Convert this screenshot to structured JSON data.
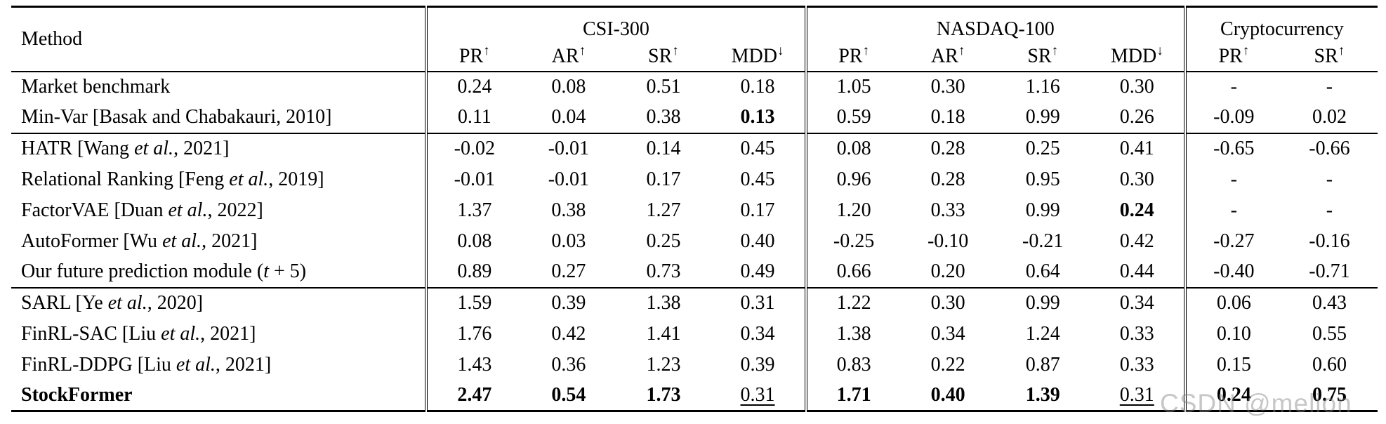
{
  "watermark": {
    "text": "CSDN @melion",
    "color": "#a8a8a8"
  },
  "table": {
    "method_header": "Method",
    "groups": [
      {
        "label": "CSI-300",
        "columns": [
          {
            "name": "PR",
            "dir": "↑"
          },
          {
            "name": "AR",
            "dir": "↑"
          },
          {
            "name": "SR",
            "dir": "↑"
          },
          {
            "name": "MDD",
            "dir": "↓"
          }
        ]
      },
      {
        "label": "NASDAQ-100",
        "columns": [
          {
            "name": "PR",
            "dir": "↑"
          },
          {
            "name": "AR",
            "dir": "↑"
          },
          {
            "name": "SR",
            "dir": "↑"
          },
          {
            "name": "MDD",
            "dir": "↓"
          }
        ]
      },
      {
        "label": "Cryptocurrency",
        "columns": [
          {
            "name": "PR",
            "dir": "↑"
          },
          {
            "name": "SR",
            "dir": "↑"
          }
        ]
      }
    ],
    "row_groups": [
      {
        "name": "benchmarks",
        "rows": [
          {
            "method": [
              {
                "t": "Market benchmark"
              }
            ],
            "cells": [
              "0.24",
              "0.08",
              "0.51",
              "0.18",
              "1.05",
              "0.30",
              "1.16",
              "0.30",
              "-",
              "-"
            ]
          },
          {
            "method": [
              {
                "t": "Min-Var [Basak and Chabakauri, 2010]"
              }
            ],
            "cells": [
              "0.11",
              "0.04",
              "0.38",
              {
                "v": "0.13",
                "b": true
              },
              "0.59",
              "0.18",
              "0.99",
              "0.26",
              "-0.09",
              "0.02"
            ]
          }
        ]
      },
      {
        "name": "prediction-models",
        "rows": [
          {
            "method": [
              {
                "t": "HATR [Wang "
              },
              {
                "t": "et al.",
                "i": true
              },
              {
                "t": ", 2021]"
              }
            ],
            "cells": [
              "-0.02",
              "-0.01",
              "0.14",
              "0.45",
              "0.08",
              "0.28",
              "0.25",
              "0.41",
              "-0.65",
              "-0.66"
            ]
          },
          {
            "method": [
              {
                "t": "Relational Ranking [Feng "
              },
              {
                "t": "et al.",
                "i": true
              },
              {
                "t": ", 2019]"
              }
            ],
            "cells": [
              "-0.01",
              "-0.01",
              "0.17",
              "0.45",
              "0.96",
              "0.28",
              "0.95",
              "0.30",
              "-",
              "-"
            ]
          },
          {
            "method": [
              {
                "t": "FactorVAE [Duan "
              },
              {
                "t": "et al.",
                "i": true
              },
              {
                "t": ", 2022]"
              }
            ],
            "cells": [
              "1.37",
              "0.38",
              "1.27",
              "0.17",
              "1.20",
              "0.33",
              "0.99",
              {
                "v": "0.24",
                "b": true
              },
              "-",
              "-"
            ]
          },
          {
            "method": [
              {
                "t": "AutoFormer [Wu "
              },
              {
                "t": "et al.",
                "i": true
              },
              {
                "t": ", 2021]"
              }
            ],
            "cells": [
              "0.08",
              "0.03",
              "0.25",
              "0.40",
              "-0.25",
              "-0.10",
              "-0.21",
              "0.42",
              "-0.27",
              "-0.16"
            ]
          },
          {
            "method": [
              {
                "t": "Our future prediction module ("
              },
              {
                "t": "t",
                "i": true
              },
              {
                "t": " + 5)"
              }
            ],
            "cells": [
              "0.89",
              "0.27",
              "0.73",
              "0.49",
              "0.66",
              "0.20",
              "0.64",
              "0.44",
              "-0.40",
              "-0.71"
            ]
          }
        ]
      },
      {
        "name": "rl-models",
        "rows": [
          {
            "method": [
              {
                "t": "SARL [Ye "
              },
              {
                "t": "et al.",
                "i": true
              },
              {
                "t": ", 2020]"
              }
            ],
            "cells": [
              "1.59",
              "0.39",
              "1.38",
              "0.31",
              "1.22",
              "0.30",
              "0.99",
              "0.34",
              "0.06",
              "0.43"
            ]
          },
          {
            "method": [
              {
                "t": "FinRL-SAC [Liu "
              },
              {
                "t": "et al.",
                "i": true
              },
              {
                "t": ", 2021]"
              }
            ],
            "cells": [
              "1.76",
              "0.42",
              "1.41",
              "0.34",
              "1.38",
              "0.34",
              "1.24",
              "0.33",
              "0.10",
              "0.55"
            ]
          },
          {
            "method": [
              {
                "t": "FinRL-DDPG [Liu "
              },
              {
                "t": "et al.",
                "i": true
              },
              {
                "t": ", 2021]"
              }
            ],
            "cells": [
              "1.43",
              "0.36",
              "1.23",
              "0.39",
              "0.83",
              "0.22",
              "0.87",
              "0.33",
              "0.15",
              "0.60"
            ]
          },
          {
            "method": [
              {
                "t": "StockFormer"
              }
            ],
            "b": true,
            "cells": [
              {
                "v": "2.47",
                "b": true
              },
              {
                "v": "0.54",
                "b": true
              },
              {
                "v": "1.73",
                "b": true
              },
              {
                "v": "0.31",
                "u": true
              },
              {
                "v": "1.71",
                "b": true
              },
              {
                "v": "0.40",
                "b": true
              },
              {
                "v": "1.39",
                "b": true
              },
              {
                "v": "0.31",
                "u": true
              },
              {
                "v": "0.24",
                "b": true
              },
              {
                "v": "0.75",
                "b": true
              }
            ]
          }
        ]
      }
    ]
  }
}
